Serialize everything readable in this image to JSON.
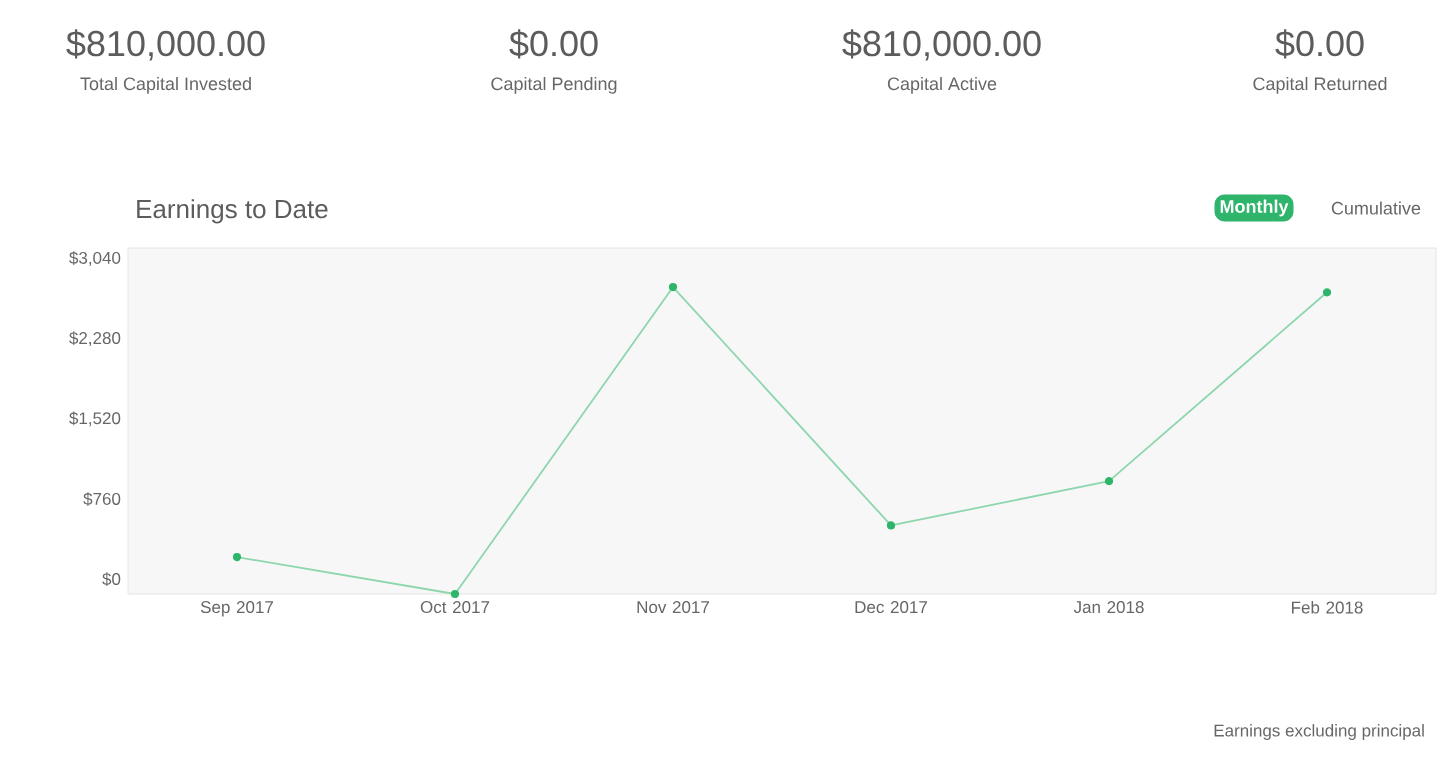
{
  "chart_data": [
    {
      "type": "other",
      "categories": [
        "Total Capital Invested",
        "Capital Pending",
        "Capital Active",
        "Capital Returned"
      ],
      "value_labels": [
        "$810,000.00",
        "$0.00",
        "$810,000.00",
        "$0.00"
      ]
    },
    {
      "type": "line",
      "title": "Earnings to Date",
      "categories": [
        "Sep 2017",
        "Oct 2017",
        "Nov 2017",
        "Dec 2017",
        "Jan 2018",
        "Feb 2018"
      ],
      "series": [
        {
          "color": "#2fb56b",
          "values": [
            210,
            -140,
            2770,
            510,
            930,
            2720
          ]
        }
      ],
      "ylim": [
        -140,
        3140
      ],
      "yticks": [
        {
          "value": 0,
          "label": "$0"
        },
        {
          "value": 760,
          "label": "$760"
        },
        {
          "value": 1520,
          "label": "$1,520"
        },
        {
          "value": 2280,
          "label": "$2,280"
        },
        {
          "value": 3040,
          "label": "$3,040"
        }
      ],
      "marker": "circle",
      "grid": false,
      "annotations": [
        "Monthly",
        "Cumulative",
        "Earnings excluding principal"
      ]
    }
  ]
}
